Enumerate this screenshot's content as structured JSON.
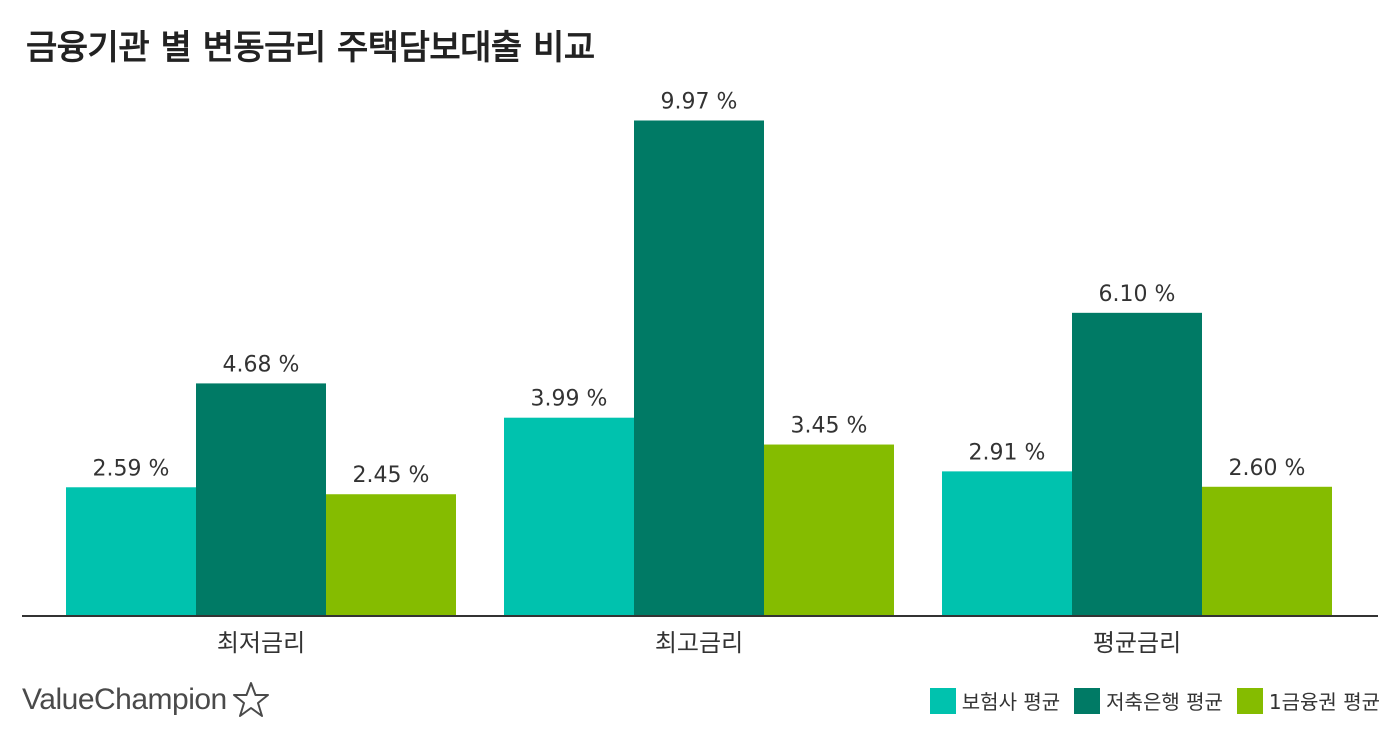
{
  "colors": {
    "insurance": "#00c2ae",
    "savings_bank": "#007a65",
    "first_tier": "#85bc00",
    "axis": "#333333"
  },
  "chart_data": {
    "type": "bar",
    "title": "금융기관 별 변동금리 주택담보대출 비교",
    "categories": [
      "최저금리",
      "최고금리",
      "평균금리"
    ],
    "series": [
      {
        "name": "보험사 평균",
        "values": [
          2.59,
          3.99,
          2.91
        ],
        "labels": [
          "2.59 %",
          "3.99 %",
          "2.91 %"
        ],
        "color": "#00c2ae"
      },
      {
        "name": "저축은행 평균",
        "values": [
          4.68,
          9.97,
          6.1
        ],
        "labels": [
          "4.68 %",
          "9.97 %",
          "6.10 %"
        ],
        "color": "#007a65"
      },
      {
        "name": "1금융권 평균",
        "values": [
          2.45,
          3.45,
          2.6
        ],
        "labels": [
          "2.45 %",
          "3.45 %",
          "2.60 %"
        ],
        "color": "#85bc00"
      }
    ],
    "ylim": [
      0,
      10
    ],
    "grid": false,
    "legend": "bottom-right"
  },
  "branding": {
    "logo_text": "ValueChampion",
    "logo_icon": "star-outline-icon"
  }
}
